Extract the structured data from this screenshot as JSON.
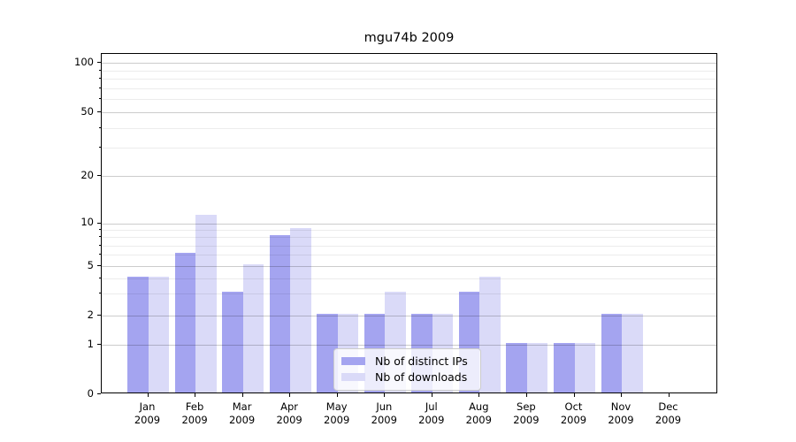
{
  "title": "mgu74b 2009",
  "chart_data": {
    "type": "bar",
    "title": "mgu74b 2009",
    "categories": [
      "Jan 2009",
      "Feb 2009",
      "Mar 2009",
      "Apr 2009",
      "May 2009",
      "Jun 2009",
      "Jul 2009",
      "Aug 2009",
      "Sep 2009",
      "Oct 2009",
      "Nov 2009",
      "Dec 2009"
    ],
    "series": [
      {
        "name": "Nb of distinct IPs",
        "color": "#a4a4f0",
        "values": [
          4,
          6,
          3,
          8,
          2,
          2,
          2,
          3,
          1,
          1,
          2,
          0
        ]
      },
      {
        "name": "Nb of downloads",
        "color": "#dadaf8",
        "values": [
          4,
          11,
          5,
          9,
          2,
          3,
          2,
          4,
          1,
          1,
          2,
          0
        ]
      }
    ],
    "xlabel": "",
    "ylabel": "",
    "y_axis": {
      "scale": "log-like (0,1,2,5,10,20,50,100)",
      "major_ticks": [
        0,
        1,
        2,
        5,
        10,
        20,
        50,
        100
      ],
      "minor_gridlines": [
        3,
        4,
        6,
        7,
        8,
        9,
        30,
        40,
        60,
        70,
        80,
        90
      ],
      "ylim": [
        0,
        100
      ]
    },
    "grid": "on",
    "legend_position": "inside bottom center-right"
  },
  "legend": {
    "items": [
      {
        "label": "Nb of distinct IPs",
        "color": "#a4a4f0"
      },
      {
        "label": "Nb of downloads",
        "color": "#dadaf8"
      }
    ]
  },
  "colors": {
    "bar_distinct_ips": "#a4a4f0",
    "bar_downloads": "#dadaf8",
    "grid_major": "#cccccc",
    "grid_minor": "#ececec",
    "frame": "#000000",
    "background": "#ffffff",
    "text": "#000000",
    "legend_border": "#cccccc"
  }
}
